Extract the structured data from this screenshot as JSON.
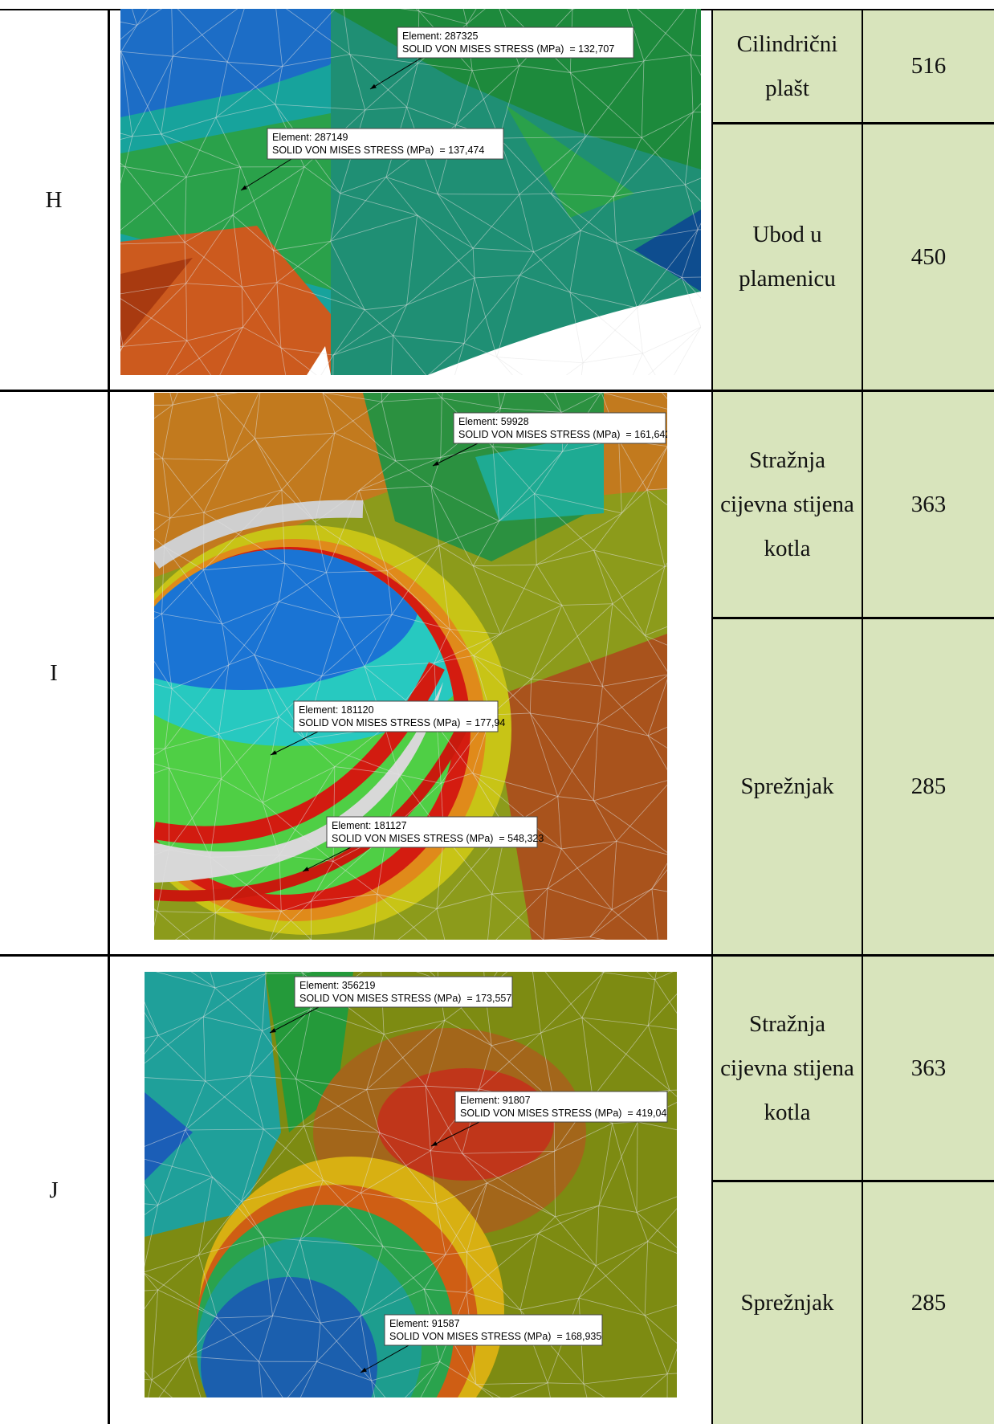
{
  "table": {
    "rows": [
      {
        "label": "H",
        "image": {
          "callouts": [
            {
              "element": "Element: 287325",
              "stress": "SOLID VON MISES STRESS (MPa)  = 132,707"
            },
            {
              "element": "Element: 287149",
              "stress": "SOLID VON MISES STRESS (MPa)  = 137,474"
            }
          ]
        },
        "parts": [
          {
            "name": "Cilindrični plašt",
            "value": 516
          },
          {
            "name": "Ubod u plamenicu",
            "value": 450
          }
        ]
      },
      {
        "label": "I",
        "image": {
          "callouts": [
            {
              "element": "Element: 59928",
              "stress": "SOLID VON MISES STRESS (MPa)  = 161,642"
            },
            {
              "element": "Element: 181120",
              "stress": "SOLID VON MISES STRESS (MPa)  = 177,94"
            },
            {
              "element": "Element: 181127",
              "stress": "SOLID VON MISES STRESS (MPa)  = 548,323"
            }
          ]
        },
        "parts": [
          {
            "name": "Stražnja cijevna stijena kotla",
            "value": 363
          },
          {
            "name": "Sprežnjak",
            "value": 285
          }
        ]
      },
      {
        "label": "J",
        "image": {
          "callouts": [
            {
              "element": "Element: 356219",
              "stress": "SOLID VON MISES STRESS (MPa)  = 173,557"
            },
            {
              "element": "Element: 91807",
              "stress": "SOLID VON MISES STRESS (MPa)  = 419,04"
            },
            {
              "element": "Element: 91587",
              "stress": "SOLID VON MISES STRESS (MPa)  = 168,935"
            }
          ]
        },
        "parts": [
          {
            "name": "Stražnja cijevna stijena kotla",
            "value": 363
          },
          {
            "name": "Sprežnjak",
            "value": 285
          }
        ]
      }
    ]
  }
}
